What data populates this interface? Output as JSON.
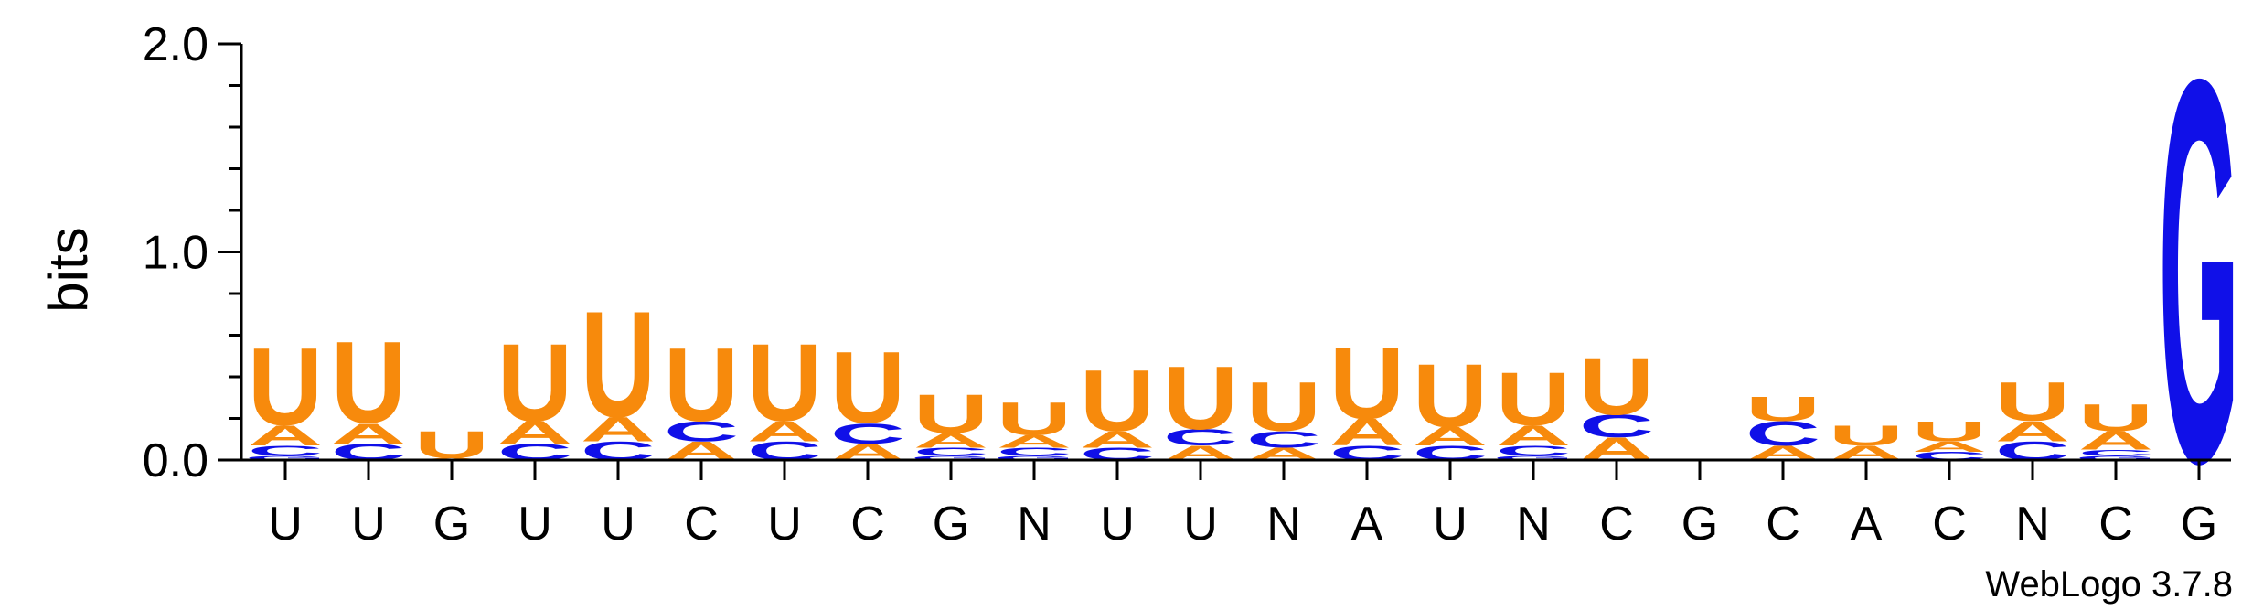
{
  "chart_data": {
    "type": "sequence-logo",
    "ylabel": "bits",
    "ylim": [
      0,
      2.0
    ],
    "y_ticks": [
      {
        "value": 0.0,
        "label": "0.0"
      },
      {
        "value": 1.0,
        "label": "1.0"
      },
      {
        "value": 2.0,
        "label": "2.0"
      }
    ],
    "x_labels": [
      "U",
      "U",
      "G",
      "U",
      "U",
      "C",
      "U",
      "C",
      "G",
      "N",
      "U",
      "U",
      "N",
      "A",
      "U",
      "N",
      "C",
      "G",
      "C",
      "A",
      "C",
      "N",
      "C",
      "G"
    ],
    "colors": {
      "U": "#f78a0c",
      "A": "#f78a0c",
      "C": "#1010e8",
      "G": "#1010e8"
    },
    "positions": [
      {
        "stack": [
          {
            "letter": "G",
            "bits": 0.02
          },
          {
            "letter": "C",
            "bits": 0.05
          },
          {
            "letter": "A",
            "bits": 0.1
          },
          {
            "letter": "U",
            "bits": 0.38
          }
        ]
      },
      {
        "stack": [
          {
            "letter": "C",
            "bits": 0.08
          },
          {
            "letter": "A",
            "bits": 0.1
          },
          {
            "letter": "U",
            "bits": 0.4
          }
        ]
      },
      {
        "stack": [
          {
            "letter": "A",
            "bits": 0.01
          },
          {
            "letter": "U",
            "bits": 0.13
          }
        ]
      },
      {
        "stack": [
          {
            "letter": "C",
            "bits": 0.08
          },
          {
            "letter": "A",
            "bits": 0.11
          },
          {
            "letter": "U",
            "bits": 0.38
          }
        ]
      },
      {
        "stack": [
          {
            "letter": "C",
            "bits": 0.09
          },
          {
            "letter": "A",
            "bits": 0.12
          },
          {
            "letter": "U",
            "bits": 0.52
          }
        ]
      },
      {
        "stack": [
          {
            "letter": "A",
            "bits": 0.09
          },
          {
            "letter": "C",
            "bits": 0.1
          },
          {
            "letter": "U",
            "bits": 0.36
          }
        ]
      },
      {
        "stack": [
          {
            "letter": "C",
            "bits": 0.09
          },
          {
            "letter": "A",
            "bits": 0.1
          },
          {
            "letter": "U",
            "bits": 0.38
          }
        ]
      },
      {
        "stack": [
          {
            "letter": "A",
            "bits": 0.08
          },
          {
            "letter": "C",
            "bits": 0.1
          },
          {
            "letter": "U",
            "bits": 0.35
          }
        ]
      },
      {
        "stack": [
          {
            "letter": "G",
            "bits": 0.02
          },
          {
            "letter": "C",
            "bits": 0.04
          },
          {
            "letter": "A",
            "bits": 0.07
          },
          {
            "letter": "U",
            "bits": 0.19
          }
        ]
      },
      {
        "stack": [
          {
            "letter": "G",
            "bits": 0.02
          },
          {
            "letter": "C",
            "bits": 0.04
          },
          {
            "letter": "A",
            "bits": 0.06
          },
          {
            "letter": "U",
            "bits": 0.16
          }
        ]
      },
      {
        "stack": [
          {
            "letter": "C",
            "bits": 0.06
          },
          {
            "letter": "A",
            "bits": 0.08
          },
          {
            "letter": "U",
            "bits": 0.3
          }
        ]
      },
      {
        "stack": [
          {
            "letter": "A",
            "bits": 0.07
          },
          {
            "letter": "C",
            "bits": 0.08
          },
          {
            "letter": "U",
            "bits": 0.31
          }
        ]
      },
      {
        "stack": [
          {
            "letter": "A",
            "bits": 0.06
          },
          {
            "letter": "C",
            "bits": 0.08
          },
          {
            "letter": "U",
            "bits": 0.24
          }
        ]
      },
      {
        "stack": [
          {
            "letter": "C",
            "bits": 0.07
          },
          {
            "letter": "A",
            "bits": 0.13
          },
          {
            "letter": "U",
            "bits": 0.35
          }
        ]
      },
      {
        "stack": [
          {
            "letter": "C",
            "bits": 0.07
          },
          {
            "letter": "A",
            "bits": 0.09
          },
          {
            "letter": "U",
            "bits": 0.31
          }
        ]
      },
      {
        "stack": [
          {
            "letter": "G",
            "bits": 0.02
          },
          {
            "letter": "C",
            "bits": 0.05
          },
          {
            "letter": "A",
            "bits": 0.1
          },
          {
            "letter": "U",
            "bits": 0.26
          }
        ]
      },
      {
        "stack": [
          {
            "letter": "A",
            "bits": 0.11
          },
          {
            "letter": "C",
            "bits": 0.11
          },
          {
            "letter": "U",
            "bits": 0.28
          }
        ]
      },
      {
        "stack": []
      },
      {
        "stack": [
          {
            "letter": "A",
            "bits": 0.07
          },
          {
            "letter": "C",
            "bits": 0.12
          },
          {
            "letter": "U",
            "bits": 0.12
          }
        ]
      },
      {
        "stack": [
          {
            "letter": "A",
            "bits": 0.07
          },
          {
            "letter": "U",
            "bits": 0.1
          }
        ]
      },
      {
        "stack": [
          {
            "letter": "C",
            "bits": 0.04
          },
          {
            "letter": "A",
            "bits": 0.05
          },
          {
            "letter": "U",
            "bits": 0.1
          }
        ]
      },
      {
        "stack": [
          {
            "letter": "C",
            "bits": 0.09
          },
          {
            "letter": "A",
            "bits": 0.1
          },
          {
            "letter": "U",
            "bits": 0.19
          }
        ]
      },
      {
        "stack": [
          {
            "letter": "G",
            "bits": 0.02
          },
          {
            "letter": "C",
            "bits": 0.03
          },
          {
            "letter": "A",
            "bits": 0.09
          },
          {
            "letter": "U",
            "bits": 0.13
          }
        ]
      },
      {
        "stack": [
          {
            "letter": "G",
            "bits": 1.88
          }
        ]
      }
    ]
  },
  "credit": "WebLogo 3.7.8"
}
